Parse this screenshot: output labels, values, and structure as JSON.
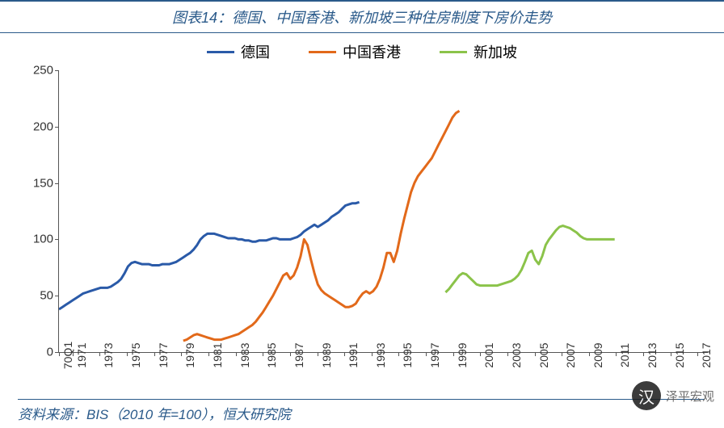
{
  "title": "图表14：德国、中国香港、新加坡三种住房制度下房价走势",
  "source": "资料来源：BIS（2010 年=100），恒大研究院",
  "watermark": {
    "icon": "汉",
    "text": "泽平宏观"
  },
  "chart": {
    "type": "line",
    "background_color": "#ffffff",
    "axis_color": "#555555",
    "font_size_axis": 15,
    "ylim": [
      0,
      250
    ],
    "yticks": [
      0,
      50,
      100,
      150,
      200,
      250
    ],
    "x_start_year": 1970,
    "x_end_year": 2017,
    "x_labels": [
      "70Q1",
      "1971",
      "1973",
      "1975",
      "1977",
      "1979",
      "1981",
      "1983",
      "1985",
      "1987",
      "1989",
      "1991",
      "1993",
      "1995",
      "1997",
      "1999",
      "2001",
      "2003",
      "2005",
      "2007",
      "2009",
      "2011",
      "2013",
      "2015",
      "2017"
    ],
    "line_width": 3,
    "series": [
      {
        "name": "germany",
        "label": "德国",
        "color": "#2a5aa8",
        "start_year": 1970,
        "values": [
          38,
          40,
          42,
          44,
          46,
          48,
          50,
          52,
          53,
          54,
          55,
          56,
          57,
          57,
          57,
          58,
          60,
          62,
          65,
          70,
          76,
          79,
          80,
          79,
          78,
          78,
          78,
          77,
          77,
          77,
          78,
          78,
          78,
          79,
          80,
          82,
          84,
          86,
          88,
          91,
          95,
          100,
          103,
          105,
          105,
          105,
          104,
          103,
          102,
          101,
          101,
          101,
          100,
          100,
          99,
          99,
          98,
          98,
          99,
          99,
          99,
          100,
          101,
          101,
          100,
          100,
          100,
          100,
          101,
          102,
          104,
          107,
          109,
          111,
          113,
          111,
          113,
          115,
          117,
          120,
          122,
          124,
          127,
          130,
          131,
          132,
          132,
          133
        ]
      },
      {
        "name": "hongkong",
        "label": "中国香港",
        "color": "#e2691a",
        "start_year": 1979,
        "values": [
          10,
          11,
          13,
          15,
          16,
          15,
          14,
          13,
          12,
          11,
          11,
          11,
          12,
          13,
          14,
          15,
          16,
          18,
          20,
          22,
          24,
          27,
          31,
          35,
          40,
          45,
          50,
          56,
          62,
          68,
          70,
          65,
          68,
          75,
          85,
          100,
          95,
          82,
          70,
          60,
          55,
          52,
          50,
          48,
          46,
          44,
          42,
          40,
          40,
          41,
          43,
          48,
          52,
          54,
          52,
          54,
          58,
          65,
          75,
          88,
          88,
          80,
          90,
          105,
          118,
          130,
          142,
          150,
          156,
          160,
          164,
          168,
          172,
          178,
          184,
          190,
          196,
          202,
          208,
          212,
          214
        ]
      },
      {
        "name": "singapore",
        "label": "新加坡",
        "color": "#8bc34a",
        "start_year": 1998,
        "values": [
          53,
          56,
          60,
          64,
          68,
          70,
          69,
          66,
          63,
          60,
          59,
          59,
          59,
          59,
          59,
          59,
          60,
          61,
          62,
          63,
          65,
          68,
          73,
          80,
          88,
          90,
          82,
          78,
          85,
          95,
          100,
          104,
          108,
          111,
          112,
          111,
          110,
          108,
          106,
          103,
          101,
          100,
          100,
          100,
          100,
          100,
          100,
          100,
          100,
          100
        ]
      }
    ],
    "legend": {
      "font_size": 18,
      "items": [
        {
          "key": "germany"
        },
        {
          "key": "hongkong"
        },
        {
          "key": "singapore"
        }
      ]
    }
  }
}
